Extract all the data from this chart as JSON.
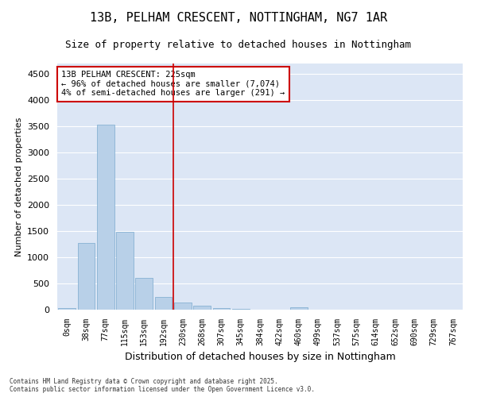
{
  "title": "13B, PELHAM CRESCENT, NOTTINGHAM, NG7 1AR",
  "subtitle": "Size of property relative to detached houses in Nottingham",
  "xlabel": "Distribution of detached houses by size in Nottingham",
  "ylabel": "Number of detached properties",
  "categories": [
    "0sqm",
    "38sqm",
    "77sqm",
    "115sqm",
    "153sqm",
    "192sqm",
    "230sqm",
    "268sqm",
    "307sqm",
    "345sqm",
    "384sqm",
    "422sqm",
    "460sqm",
    "499sqm",
    "537sqm",
    "575sqm",
    "614sqm",
    "652sqm",
    "690sqm",
    "729sqm",
    "767sqm"
  ],
  "values": [
    30,
    1280,
    3530,
    1490,
    600,
    250,
    140,
    80,
    30,
    10,
    0,
    0,
    50,
    0,
    0,
    0,
    0,
    0,
    0,
    0,
    0
  ],
  "bar_color": "#b8d0e8",
  "bar_edge_color": "#7aaace",
  "vline_color": "#cc0000",
  "vline_index": 5.5,
  "annotation_text": "13B PELHAM CRESCENT: 225sqm\n← 96% of detached houses are smaller (7,074)\n4% of semi-detached houses are larger (291) →",
  "annotation_box_facecolor": "#ffffff",
  "annotation_box_edgecolor": "#cc0000",
  "ylim": [
    0,
    4700
  ],
  "yticks": [
    0,
    500,
    1000,
    1500,
    2000,
    2500,
    3000,
    3500,
    4000,
    4500
  ],
  "plot_bg": "#dce6f5",
  "fig_bg": "#ffffff",
  "grid_color": "#ffffff",
  "title_fontsize": 11,
  "subtitle_fontsize": 9,
  "axis_label_fontsize": 8,
  "tick_fontsize": 7,
  "footer": "Contains HM Land Registry data © Crown copyright and database right 2025.\nContains public sector information licensed under the Open Government Licence v3.0."
}
